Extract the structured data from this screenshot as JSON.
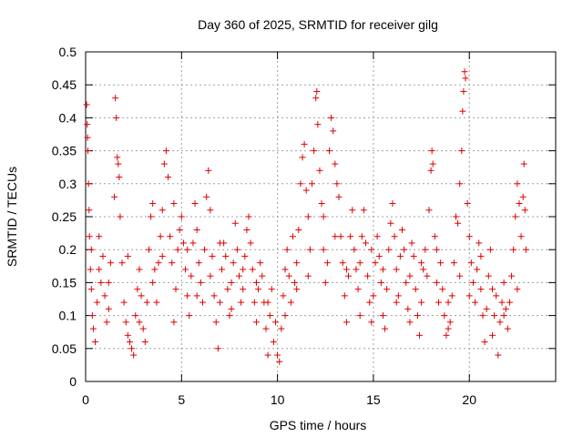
{
  "chart_data": {
    "type": "scatter",
    "title": "Day 360 of 2025, SRMTID for receiver gilg",
    "xlabel": "GPS time / hours",
    "ylabel": "SRMTID / TECUs",
    "xlim": [
      0,
      24.5
    ],
    "ylim": [
      0,
      0.5
    ],
    "x_ticks": [
      0,
      5,
      10,
      15,
      20
    ],
    "y_ticks": [
      0,
      0.05,
      0.1,
      0.15,
      0.2,
      0.25,
      0.3,
      0.35,
      0.4,
      0.45,
      0.5
    ],
    "x_tick_labels": [
      "0",
      "5",
      "10",
      "15",
      "20"
    ],
    "y_tick_labels": [
      "0",
      "0.05",
      "0.1",
      "0.15",
      "0.2",
      "0.25",
      "0.3",
      "0.35",
      "0.4",
      "0.45",
      "0.5"
    ],
    "grid": true,
    "marker": "+",
    "color": "#e00000",
    "series": [
      {
        "name": "SRMTID",
        "points": [
          [
            0.05,
            0.42
          ],
          [
            0.08,
            0.39
          ],
          [
            0.1,
            0.37
          ],
          [
            0.12,
            0.35
          ],
          [
            0.15,
            0.3
          ],
          [
            0.18,
            0.26
          ],
          [
            0.2,
            0.22
          ],
          [
            0.25,
            0.17
          ],
          [
            0.3,
            0.14
          ],
          [
            0.35,
            0.1
          ],
          [
            0.4,
            0.08
          ],
          [
            0.5,
            0.06
          ],
          [
            0.6,
            0.12
          ],
          [
            0.7,
            0.17
          ],
          [
            0.8,
            0.15
          ],
          [
            0.9,
            0.19
          ],
          [
            1.0,
            0.13
          ],
          [
            1.1,
            0.09
          ],
          [
            1.2,
            0.15
          ],
          [
            1.3,
            0.18
          ],
          [
            1.5,
            0.28
          ],
          [
            1.55,
            0.43
          ],
          [
            1.6,
            0.4
          ],
          [
            1.65,
            0.34
          ],
          [
            1.7,
            0.33
          ],
          [
            1.75,
            0.31
          ],
          [
            1.8,
            0.25
          ],
          [
            1.9,
            0.18
          ],
          [
            2.0,
            0.12
          ],
          [
            2.1,
            0.09
          ],
          [
            2.2,
            0.07
          ],
          [
            2.3,
            0.06
          ],
          [
            2.4,
            0.05
          ],
          [
            2.5,
            0.04
          ],
          [
            2.6,
            0.1
          ],
          [
            2.7,
            0.14
          ],
          [
            2.8,
            0.17
          ],
          [
            2.9,
            0.13
          ],
          [
            3.0,
            0.08
          ],
          [
            3.1,
            0.06
          ],
          [
            3.2,
            0.12
          ],
          [
            3.3,
            0.2
          ],
          [
            3.4,
            0.25
          ],
          [
            3.5,
            0.27
          ],
          [
            3.6,
            0.17
          ],
          [
            3.7,
            0.12
          ],
          [
            3.8,
            0.18
          ],
          [
            3.9,
            0.22
          ],
          [
            4.0,
            0.26
          ],
          [
            4.1,
            0.33
          ],
          [
            4.2,
            0.35
          ],
          [
            4.3,
            0.31
          ],
          [
            4.4,
            0.22
          ],
          [
            4.5,
            0.18
          ],
          [
            4.6,
            0.09
          ],
          [
            4.7,
            0.14
          ],
          [
            4.8,
            0.2
          ],
          [
            4.9,
            0.23
          ],
          [
            5.0,
            0.25
          ],
          [
            5.1,
            0.21
          ],
          [
            5.2,
            0.17
          ],
          [
            5.3,
            0.13
          ],
          [
            5.4,
            0.1
          ],
          [
            5.5,
            0.16
          ],
          [
            5.6,
            0.21
          ],
          [
            5.7,
            0.27
          ],
          [
            5.8,
            0.23
          ],
          [
            5.9,
            0.18
          ],
          [
            6.0,
            0.15
          ],
          [
            6.1,
            0.12
          ],
          [
            6.2,
            0.2
          ],
          [
            6.3,
            0.28
          ],
          [
            6.4,
            0.32
          ],
          [
            6.5,
            0.26
          ],
          [
            6.6,
            0.19
          ],
          [
            6.7,
            0.13
          ],
          [
            6.8,
            0.09
          ],
          [
            6.9,
            0.05
          ],
          [
            7.0,
            0.12
          ],
          [
            7.1,
            0.17
          ],
          [
            7.2,
            0.21
          ],
          [
            7.3,
            0.19
          ],
          [
            7.4,
            0.14
          ],
          [
            7.5,
            0.1
          ],
          [
            7.6,
            0.15
          ],
          [
            7.7,
            0.18
          ],
          [
            7.8,
            0.24
          ],
          [
            7.9,
            0.2
          ],
          [
            8.0,
            0.16
          ],
          [
            8.1,
            0.12
          ],
          [
            8.2,
            0.14
          ],
          [
            8.3,
            0.19
          ],
          [
            8.4,
            0.23
          ],
          [
            8.5,
            0.25
          ],
          [
            8.6,
            0.21
          ],
          [
            8.7,
            0.17
          ],
          [
            8.8,
            0.12
          ],
          [
            8.9,
            0.09
          ],
          [
            9.0,
            0.14
          ],
          [
            9.1,
            0.18
          ],
          [
            9.2,
            0.16
          ],
          [
            9.3,
            0.12
          ],
          [
            9.4,
            0.08
          ],
          [
            9.5,
            0.04
          ],
          [
            9.6,
            0.1
          ],
          [
            9.7,
            0.14
          ],
          [
            9.8,
            0.06
          ],
          [
            9.9,
            0.09
          ],
          [
            10.0,
            0.04
          ],
          [
            10.1,
            0.03
          ],
          [
            10.2,
            0.08
          ],
          [
            10.3,
            0.13
          ],
          [
            10.4,
            0.17
          ],
          [
            10.5,
            0.2
          ],
          [
            10.6,
            0.16
          ],
          [
            10.7,
            0.12
          ],
          [
            10.8,
            0.22
          ],
          [
            10.9,
            0.15
          ],
          [
            11.0,
            0.18
          ],
          [
            11.1,
            0.23
          ],
          [
            11.2,
            0.3
          ],
          [
            11.3,
            0.34
          ],
          [
            11.4,
            0.36
          ],
          [
            11.5,
            0.29
          ],
          [
            11.6,
            0.25
          ],
          [
            11.7,
            0.2
          ],
          [
            11.8,
            0.3
          ],
          [
            11.9,
            0.35
          ],
          [
            12.0,
            0.43
          ],
          [
            12.05,
            0.44
          ],
          [
            12.1,
            0.39
          ],
          [
            12.2,
            0.32
          ],
          [
            12.3,
            0.27
          ],
          [
            12.4,
            0.2
          ],
          [
            12.5,
            0.15
          ],
          [
            12.6,
            0.18
          ],
          [
            12.7,
            0.35
          ],
          [
            12.8,
            0.4
          ],
          [
            12.9,
            0.38
          ],
          [
            13.0,
            0.33
          ],
          [
            13.1,
            0.3
          ],
          [
            13.2,
            0.28
          ],
          [
            13.3,
            0.22
          ],
          [
            13.4,
            0.18
          ],
          [
            13.5,
            0.13
          ],
          [
            13.6,
            0.09
          ],
          [
            13.7,
            0.16
          ],
          [
            13.8,
            0.22
          ],
          [
            13.9,
            0.26
          ],
          [
            14.0,
            0.2
          ],
          [
            14.1,
            0.17
          ],
          [
            14.2,
            0.14
          ],
          [
            14.3,
            0.18
          ],
          [
            14.4,
            0.22
          ],
          [
            14.5,
            0.26
          ],
          [
            14.6,
            0.21
          ],
          [
            14.7,
            0.16
          ],
          [
            14.8,
            0.12
          ],
          [
            14.9,
            0.09
          ],
          [
            15.0,
            0.13
          ],
          [
            15.1,
            0.18
          ],
          [
            15.2,
            0.22
          ],
          [
            15.3,
            0.19
          ],
          [
            15.4,
            0.15
          ],
          [
            15.5,
            0.1
          ],
          [
            15.6,
            0.08
          ],
          [
            15.7,
            0.14
          ],
          [
            15.8,
            0.2
          ],
          [
            15.9,
            0.24
          ],
          [
            16.0,
            0.27
          ],
          [
            16.1,
            0.22
          ],
          [
            16.2,
            0.17
          ],
          [
            16.3,
            0.13
          ],
          [
            16.4,
            0.19
          ],
          [
            16.5,
            0.23
          ],
          [
            16.6,
            0.2
          ],
          [
            16.7,
            0.15
          ],
          [
            16.8,
            0.11
          ],
          [
            16.9,
            0.16
          ],
          [
            17.0,
            0.21
          ],
          [
            17.1,
            0.19
          ],
          [
            17.2,
            0.14
          ],
          [
            17.3,
            0.1
          ],
          [
            17.4,
            0.07
          ],
          [
            17.5,
            0.12
          ],
          [
            17.6,
            0.17
          ],
          [
            17.7,
            0.2
          ],
          [
            17.8,
            0.16
          ],
          [
            17.9,
            0.26
          ],
          [
            18.0,
            0.32
          ],
          [
            18.05,
            0.35
          ],
          [
            18.1,
            0.33
          ],
          [
            18.2,
            0.22
          ],
          [
            18.3,
            0.15
          ],
          [
            18.4,
            0.12
          ],
          [
            18.5,
            0.18
          ],
          [
            18.6,
            0.14
          ],
          [
            18.7,
            0.1
          ],
          [
            18.8,
            0.07
          ],
          [
            18.9,
            0.12
          ],
          [
            19.0,
            0.09
          ],
          [
            19.1,
            0.13
          ],
          [
            19.2,
            0.18
          ],
          [
            19.3,
            0.25
          ],
          [
            19.4,
            0.24
          ],
          [
            19.5,
            0.3
          ],
          [
            19.6,
            0.35
          ],
          [
            19.65,
            0.41
          ],
          [
            19.7,
            0.44
          ],
          [
            19.75,
            0.47
          ],
          [
            19.8,
            0.46
          ],
          [
            19.9,
            0.27
          ],
          [
            20.0,
            0.22
          ],
          [
            20.1,
            0.18
          ],
          [
            20.2,
            0.15
          ],
          [
            20.3,
            0.12
          ],
          [
            20.4,
            0.17
          ],
          [
            20.5,
            0.21
          ],
          [
            20.6,
            0.14
          ],
          [
            20.7,
            0.1
          ],
          [
            20.8,
            0.06
          ],
          [
            20.9,
            0.11
          ],
          [
            21.0,
            0.16
          ],
          [
            21.1,
            0.2
          ],
          [
            21.2,
            0.14
          ],
          [
            21.3,
            0.1
          ],
          [
            21.4,
            0.13
          ],
          [
            21.5,
            0.04
          ],
          [
            21.6,
            0.09
          ],
          [
            21.7,
            0.12
          ],
          [
            21.8,
            0.15
          ],
          [
            21.9,
            0.11
          ],
          [
            22.0,
            0.08
          ],
          [
            22.1,
            0.12
          ],
          [
            22.2,
            0.16
          ],
          [
            22.3,
            0.2
          ],
          [
            22.4,
            0.25
          ],
          [
            22.5,
            0.3
          ],
          [
            22.6,
            0.27
          ],
          [
            22.7,
            0.22
          ],
          [
            22.8,
            0.28
          ],
          [
            22.85,
            0.33
          ],
          [
            22.9,
            0.26
          ],
          [
            22.95,
            0.2
          ],
          [
            0.3,
            0.2
          ],
          [
            0.7,
            0.22
          ],
          [
            1.2,
            0.11
          ],
          [
            2.2,
            0.19
          ],
          [
            2.8,
            0.09
          ],
          [
            3.5,
            0.15
          ],
          [
            4.0,
            0.19
          ],
          [
            4.6,
            0.27
          ],
          [
            5.3,
            0.2
          ],
          [
            5.8,
            0.13
          ],
          [
            6.5,
            0.16
          ],
          [
            7.0,
            0.21
          ],
          [
            7.6,
            0.11
          ],
          [
            8.2,
            0.17
          ],
          [
            8.9,
            0.15
          ],
          [
            9.5,
            0.12
          ],
          [
            10.4,
            0.1
          ],
          [
            11.0,
            0.14
          ],
          [
            11.6,
            0.16
          ],
          [
            12.4,
            0.25
          ],
          [
            13.0,
            0.22
          ],
          [
            13.6,
            0.17
          ],
          [
            14.3,
            0.1
          ],
          [
            14.9,
            0.2
          ],
          [
            15.5,
            0.17
          ],
          [
            16.2,
            0.12
          ],
          [
            16.9,
            0.09
          ],
          [
            17.5,
            0.18
          ],
          [
            18.3,
            0.2
          ],
          [
            18.9,
            0.08
          ],
          [
            19.5,
            0.16
          ],
          [
            20.0,
            0.13
          ],
          [
            20.6,
            0.19
          ],
          [
            21.2,
            0.07
          ],
          [
            21.8,
            0.1
          ],
          [
            22.5,
            0.14
          ]
        ]
      }
    ]
  }
}
